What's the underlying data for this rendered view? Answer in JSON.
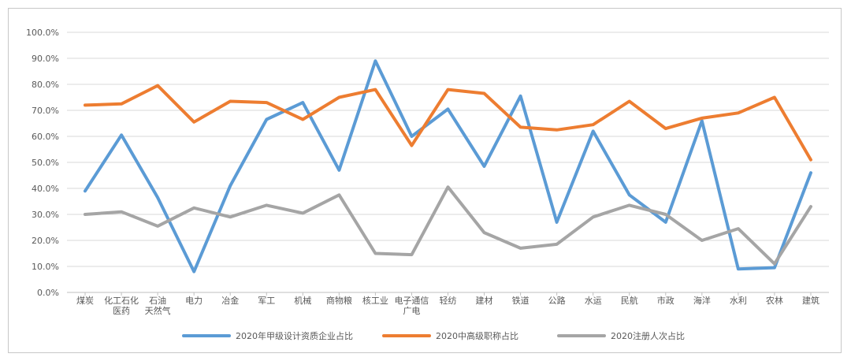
{
  "chart_data": {
    "type": "line",
    "categories": [
      [
        "煤炭"
      ],
      [
        "化工石化",
        "医药"
      ],
      [
        "石油",
        "天然气"
      ],
      [
        "电力"
      ],
      [
        "冶金"
      ],
      [
        "军工"
      ],
      [
        "机械"
      ],
      [
        "商物粮"
      ],
      [
        "核工业"
      ],
      [
        "电子通信",
        "广电"
      ],
      [
        "轻纺"
      ],
      [
        "建材"
      ],
      [
        "铁道"
      ],
      [
        "公路"
      ],
      [
        "水运"
      ],
      [
        "民航"
      ],
      [
        "市政"
      ],
      [
        "海洋"
      ],
      [
        "水利"
      ],
      [
        "农林"
      ],
      [
        "建筑"
      ]
    ],
    "yticks": [
      "0.0%",
      "10.0%",
      "20.0%",
      "30.0%",
      "40.0%",
      "50.0%",
      "60.0%",
      "70.0%",
      "80.0%",
      "90.0%",
      "100.0%"
    ],
    "ylim": [
      0,
      100
    ],
    "grid": true,
    "legend_position": "bottom",
    "series": [
      {
        "name": "2020年甲级设计资质企业占比",
        "color": "#5b9bd5",
        "values": [
          39,
          60.5,
          36.5,
          8,
          41,
          66.5,
          73,
          47,
          89,
          60,
          70.5,
          48.5,
          75.5,
          27,
          62,
          37.5,
          27,
          66,
          9,
          9.5,
          46
        ]
      },
      {
        "name": "2020中高级职称占比",
        "color": "#ed7d31",
        "values": [
          72,
          72.5,
          79.5,
          65.5,
          73.5,
          73,
          66.5,
          75,
          78,
          56.5,
          78,
          76.5,
          63.5,
          62.5,
          64.5,
          73.5,
          63,
          67,
          69,
          75,
          51
        ]
      },
      {
        "name": "2020注册人次占比",
        "color": "#a5a5a5",
        "values": [
          30,
          31,
          25.5,
          32.5,
          29,
          33.5,
          30.5,
          37.5,
          15,
          14.5,
          40.5,
          23,
          17,
          18.5,
          29,
          33.5,
          30,
          20,
          24.5,
          11,
          33
        ]
      }
    ]
  }
}
